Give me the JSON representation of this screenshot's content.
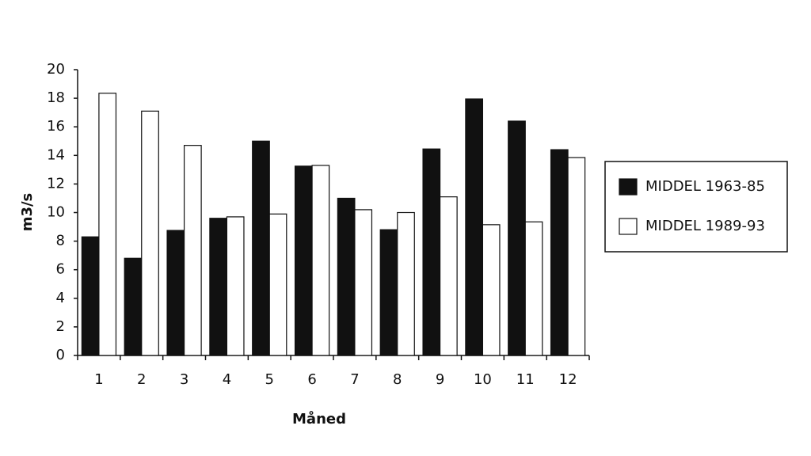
{
  "chart_data": {
    "type": "bar",
    "x_label": "Måned",
    "y_label": "m3/s",
    "categories": [
      "1",
      "2",
      "3",
      "4",
      "5",
      "6",
      "7",
      "8",
      "9",
      "10",
      "11",
      "12"
    ],
    "series": [
      {
        "name": "MIDDEL 1963-85",
        "color": "#111111",
        "values": [
          8.3,
          6.8,
          8.75,
          9.6,
          15.0,
          13.25,
          11.0,
          8.8,
          14.45,
          17.95,
          16.4,
          14.4
        ]
      },
      {
        "name": "MIDDEL 1989-93",
        "color": "#ffffff",
        "values": [
          18.35,
          17.1,
          14.7,
          9.7,
          9.9,
          13.3,
          10.2,
          10.0,
          11.1,
          9.15,
          9.35,
          13.85
        ]
      }
    ],
    "ylim": [
      0,
      20
    ],
    "yticks": [
      0,
      2,
      4,
      6,
      8,
      10,
      12,
      14,
      16,
      18,
      20
    ],
    "grid": false,
    "legend": "right"
  }
}
